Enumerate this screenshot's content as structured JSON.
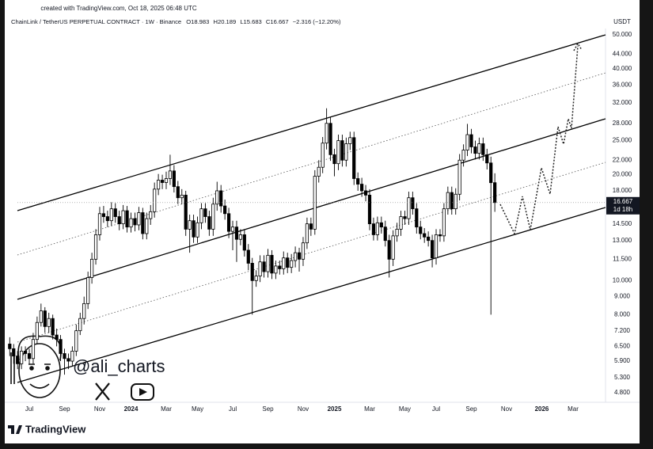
{
  "header": {
    "created": "created with TradingView.com, Oct 18, 2025 06:48 UTC"
  },
  "chart_data": {
    "type": "candlestick",
    "title": "ChainLink / TetherUS PERPETUAL CONTRACT · 1W · Binance",
    "legend_values": [
      "O18.983",
      "H20.189",
      "L15.683",
      "C16.667",
      "−2.316 (−12.20%)"
    ],
    "y_unit": "USDT",
    "categories": [
      null,
      null,
      null,
      null,
      null,
      "Jul",
      null,
      null,
      null,
      null,
      null,
      null,
      null,
      null,
      "Sep",
      null,
      null,
      null,
      null,
      null,
      null,
      null,
      null,
      "Nov",
      null,
      null,
      null,
      null,
      null,
      null,
      null,
      "2024",
      null,
      null,
      null,
      null,
      null,
      null,
      null,
      null,
      "Mar",
      null,
      null,
      null,
      null,
      null,
      null,
      null,
      "May",
      null,
      null,
      null,
      null,
      null,
      null,
      null,
      null,
      "Jul",
      null,
      null,
      null,
      null,
      null,
      null,
      null,
      null,
      "Sep",
      null,
      null,
      null,
      null,
      null,
      null,
      null,
      null,
      "Nov",
      null,
      null,
      null,
      null,
      null,
      null,
      null,
      "2025",
      null,
      null,
      null,
      null,
      null,
      null,
      null,
      null,
      "Mar",
      null,
      null,
      null,
      null,
      null,
      null,
      null,
      null,
      "May",
      null,
      null,
      null,
      null,
      null,
      null,
      null,
      "Jul",
      null,
      null,
      null,
      null,
      null,
      null,
      null,
      null,
      "Sep",
      null,
      null,
      null,
      null,
      null,
      null,
      null,
      null,
      "Nov",
      null,
      null,
      null,
      null,
      null,
      null,
      null,
      null,
      "2026",
      null,
      null,
      null,
      null,
      null,
      null,
      null,
      "Mar"
    ],
    "open": [
      6.6,
      6.4,
      6.1,
      5.8,
      6.3,
      6.2,
      6.0,
      6.8,
      7.6,
      8.2,
      7.4,
      7.8,
      7.0,
      6.8,
      6.2,
      6.0,
      5.9,
      6.3,
      7.2,
      7.8,
      8.6,
      10.2,
      11.5,
      13.5,
      15.5,
      15.2,
      14.8,
      16.0,
      15.2,
      14.5,
      15.8,
      14.2,
      15.0,
      14.4,
      15.6,
      13.6,
      15.0,
      15.7,
      18.2,
      19.3,
      19.0,
      19.5,
      20.5,
      18.5,
      17.2,
      17.5,
      14.0,
      14.8,
      13.3,
      14.6,
      16.0,
      15.2,
      14.0,
      16.5,
      18.0,
      16.3,
      15.5,
      13.8,
      14.2,
      13.1,
      13.5,
      12.2,
      11.2,
      10.0,
      10.3,
      11.3,
      10.6,
      11.8,
      10.5,
      11.0,
      10.8,
      11.6,
      10.9,
      11.4,
      12.0,
      11.5,
      12.8,
      14.5,
      14.0,
      19.8,
      21.0,
      24.6,
      28.0,
      22.8,
      21.5,
      25.0,
      22.0,
      24.5,
      25.5,
      19.5,
      18.8,
      18.0,
      17.5,
      14.5,
      13.5,
      14.6,
      14.2,
      13.0,
      11.5,
      13.4,
      14.0,
      15.2,
      15.0,
      17.2,
      16.0,
      14.2,
      13.6,
      13.3,
      13.0,
      11.6,
      13.5,
      13.4,
      16.0,
      17.8,
      16.0,
      17.6,
      22.0,
      23.5,
      26.0,
      24.0,
      23.0,
      24.5,
      22.8,
      21.6,
      18.983,
      null,
      null,
      null,
      null,
      null,
      null,
      null,
      null,
      null,
      null,
      null,
      null,
      null,
      null,
      null,
      null,
      null,
      null,
      null,
      null
    ],
    "high": [
      6.9,
      6.6,
      6.3,
      6.5,
      6.5,
      6.4,
      7.1,
      7.9,
      8.6,
      8.4,
      8.1,
      8.0,
      7.3,
      7.0,
      6.4,
      6.2,
      6.5,
      7.5,
      8.1,
      9.0,
      10.6,
      12.0,
      14.0,
      16.2,
      16.3,
      15.8,
      16.7,
      16.6,
      15.8,
      16.4,
      16.3,
      15.6,
      15.6,
      16.2,
      16.1,
      15.6,
      16.4,
      19.0,
      20.1,
      20.0,
      20.4,
      22.8,
      21.3,
      19.2,
      18.2,
      18.0,
      15.4,
      15.4,
      15.2,
      16.6,
      16.6,
      15.8,
      17.2,
      19.1,
      18.7,
      17.0,
      16.1,
      14.8,
      14.8,
      14.0,
      14.0,
      12.7,
      11.6,
      10.7,
      11.8,
      11.8,
      12.3,
      12.2,
      11.4,
      11.4,
      12.1,
      12.0,
      11.9,
      12.5,
      12.4,
      13.3,
      15.1,
      15.1,
      20.6,
      22.0,
      25.6,
      30.9,
      29.1,
      23.7,
      26.0,
      26.0,
      25.5,
      26.5,
      26.5,
      20.3,
      19.6,
      18.7,
      18.2,
      15.1,
      15.2,
      15.2,
      14.8,
      13.5,
      13.9,
      14.6,
      15.8,
      15.8,
      17.9,
      17.9,
      16.6,
      14.8,
      14.1,
      13.8,
      13.5,
      14.0,
      14.0,
      16.6,
      18.5,
      18.5,
      18.3,
      22.9,
      24.4,
      27.9,
      27.0,
      25.0,
      25.5,
      25.5,
      23.7,
      22.5,
      20.189,
      null,
      null,
      null,
      null,
      null,
      null,
      null,
      null,
      null,
      null,
      null,
      null,
      null,
      null,
      null,
      null,
      null,
      null,
      null,
      null
    ],
    "low": [
      6.1,
      5.8,
      5.6,
      5.6,
      5.9,
      5.8,
      5.8,
      6.6,
      7.4,
      7.1,
      7.1,
      6.8,
      6.5,
      5.9,
      5.4,
      5.6,
      5.7,
      6.1,
      7.0,
      7.5,
      8.3,
      9.8,
      11.1,
      13.0,
      14.6,
      14.2,
      14.3,
      14.6,
      13.9,
      14.0,
      13.7,
      13.7,
      13.8,
      13.9,
      13.1,
      13.1,
      14.4,
      15.1,
      17.5,
      18.2,
      18.2,
      18.7,
      17.8,
      16.5,
      16.5,
      13.4,
      12.0,
      12.8,
      12.8,
      14.0,
      14.6,
      13.4,
      13.4,
      15.8,
      15.6,
      14.9,
      13.2,
      12.2,
      11.3,
      12.6,
      11.7,
      10.7,
      8.0,
      9.6,
      9.9,
      10.2,
      10.2,
      10.1,
      10.1,
      10.4,
      10.4,
      10.5,
      10.5,
      10.9,
      10.6,
      11.0,
      12.3,
      13.4,
      13.5,
      19.0,
      20.2,
      23.6,
      21.9,
      19.8,
      20.6,
      21.1,
      21.1,
      23.5,
      18.7,
      18.0,
      17.3,
      16.8,
      13.9,
      13.0,
      13.0,
      13.6,
      12.5,
      10.2,
      11.0,
      12.9,
      13.4,
      14.4,
      14.4,
      15.4,
      13.6,
      13.1,
      12.8,
      12.5,
      10.9,
      11.1,
      12.9,
      12.9,
      15.4,
      15.4,
      15.4,
      16.9,
      21.1,
      22.6,
      23.0,
      22.1,
      22.1,
      21.9,
      20.7,
      8.0,
      15.683,
      null,
      null,
      null,
      null,
      null,
      null,
      null,
      null,
      null,
      null,
      null,
      null,
      null,
      null,
      null,
      null,
      null,
      null,
      null,
      null
    ],
    "close": [
      6.4,
      6.1,
      5.8,
      6.3,
      6.2,
      6.0,
      6.8,
      7.6,
      8.2,
      7.4,
      7.8,
      7.0,
      6.8,
      6.2,
      6.0,
      5.9,
      6.3,
      7.2,
      7.8,
      8.6,
      10.2,
      11.5,
      13.5,
      15.5,
      15.2,
      14.8,
      16.0,
      15.2,
      14.5,
      15.8,
      14.2,
      15.0,
      14.4,
      15.6,
      13.6,
      15.0,
      15.7,
      18.2,
      19.3,
      19.0,
      19.5,
      20.5,
      18.5,
      17.2,
      17.5,
      14.0,
      14.8,
      13.3,
      14.6,
      16.0,
      15.2,
      14.0,
      16.5,
      18.0,
      16.3,
      15.5,
      13.8,
      14.2,
      13.1,
      13.5,
      12.2,
      11.2,
      10.0,
      10.3,
      11.3,
      10.6,
      11.8,
      10.5,
      11.0,
      10.8,
      11.6,
      10.9,
      11.4,
      12.0,
      11.5,
      12.8,
      14.5,
      14.0,
      19.8,
      21.0,
      24.6,
      28.0,
      22.8,
      21.5,
      25.0,
      22.0,
      24.5,
      25.5,
      19.5,
      18.8,
      18.0,
      17.5,
      14.5,
      13.5,
      14.6,
      14.2,
      13.0,
      11.5,
      13.4,
      14.0,
      15.2,
      15.0,
      17.2,
      16.0,
      14.2,
      13.6,
      13.3,
      13.0,
      11.6,
      13.5,
      13.4,
      16.0,
      17.8,
      16.0,
      17.6,
      22.0,
      23.5,
      26.0,
      24.0,
      23.0,
      24.5,
      22.8,
      21.6,
      18.983,
      16.667,
      null,
      null,
      null,
      null,
      null,
      null,
      null,
      null,
      null,
      null,
      null,
      null,
      null,
      null,
      null,
      null,
      null,
      null,
      null,
      null
    ],
    "up_color": "#ffffff",
    "down_color": "#000000",
    "log_scale": true,
    "grid": false,
    "ylim": [
      4.46,
      52.1
    ],
    "yticks": [
      {
        "value": 50,
        "label": "50.000"
      },
      {
        "value": 44,
        "label": "44.000"
      },
      {
        "value": 40,
        "label": "40.000"
      },
      {
        "value": 36,
        "label": "36.000"
      },
      {
        "value": 32,
        "label": "32.000"
      },
      {
        "value": 28,
        "label": "28.000"
      },
      {
        "value": 25,
        "label": "25.000"
      },
      {
        "value": 22,
        "label": "22.000"
      },
      {
        "value": 20,
        "label": "20.000"
      },
      {
        "value": 18,
        "label": "18.000"
      },
      {
        "value": 14.5,
        "label": "14.500"
      },
      {
        "value": 13,
        "label": "13.000"
      },
      {
        "value": 11.5,
        "label": "11.500"
      },
      {
        "value": 10,
        "label": "10.000"
      },
      {
        "value": 9,
        "label": "9.000"
      },
      {
        "value": 8,
        "label": "8.000"
      },
      {
        "value": 7.2,
        "label": "7.200"
      },
      {
        "value": 6.5,
        "label": "6.500"
      },
      {
        "value": 5.9,
        "label": "5.900"
      },
      {
        "value": 5.3,
        "label": "5.300"
      },
      {
        "value": 4.8,
        "label": "4.800"
      }
    ],
    "last_label": "16.667",
    "countdown": "1d 18h"
  },
  "watermark": {
    "handle": "@ali_charts",
    "brand": "TradingView"
  }
}
